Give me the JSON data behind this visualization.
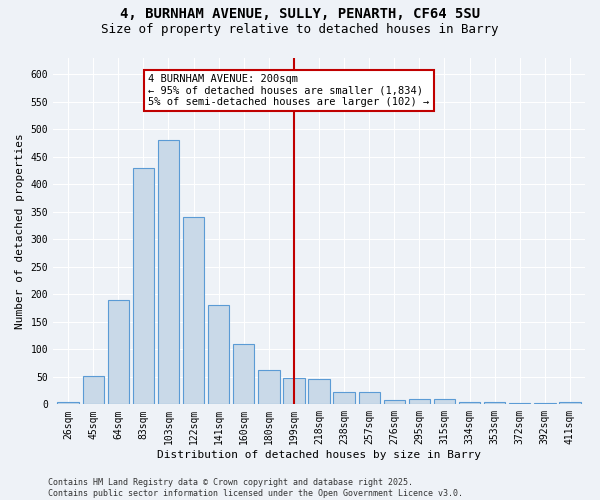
{
  "title_line1": "4, BURNHAM AVENUE, SULLY, PENARTH, CF64 5SU",
  "title_line2": "Size of property relative to detached houses in Barry",
  "xlabel": "Distribution of detached houses by size in Barry",
  "ylabel": "Number of detached properties",
  "categories": [
    "26sqm",
    "45sqm",
    "64sqm",
    "83sqm",
    "103sqm",
    "122sqm",
    "141sqm",
    "160sqm",
    "180sqm",
    "199sqm",
    "218sqm",
    "238sqm",
    "257sqm",
    "276sqm",
    "295sqm",
    "315sqm",
    "334sqm",
    "353sqm",
    "372sqm",
    "392sqm",
    "411sqm"
  ],
  "values": [
    5,
    52,
    190,
    430,
    480,
    340,
    180,
    110,
    63,
    47,
    46,
    22,
    22,
    8,
    10,
    10,
    5,
    5,
    2,
    3,
    5
  ],
  "bar_color": "#c9d9e8",
  "bar_edge_color": "#5b9bd5",
  "vline_x_index": 9,
  "vline_color": "#c00000",
  "annotation_text": "4 BURNHAM AVENUE: 200sqm\n← 95% of detached houses are smaller (1,834)\n5% of semi-detached houses are larger (102) →",
  "annotation_box_color": "#ffffff",
  "annotation_box_edge": "#c00000",
  "ylim": [
    0,
    630
  ],
  "yticks": [
    0,
    50,
    100,
    150,
    200,
    250,
    300,
    350,
    400,
    450,
    500,
    550,
    600
  ],
  "footer_text": "Contains HM Land Registry data © Crown copyright and database right 2025.\nContains public sector information licensed under the Open Government Licence v3.0.",
  "bg_color": "#eef2f7",
  "grid_color": "#ffffff",
  "title_fontsize": 10,
  "subtitle_fontsize": 9,
  "tick_fontsize": 7,
  "label_fontsize": 8,
  "footer_fontsize": 6,
  "annot_fontsize": 7.5
}
